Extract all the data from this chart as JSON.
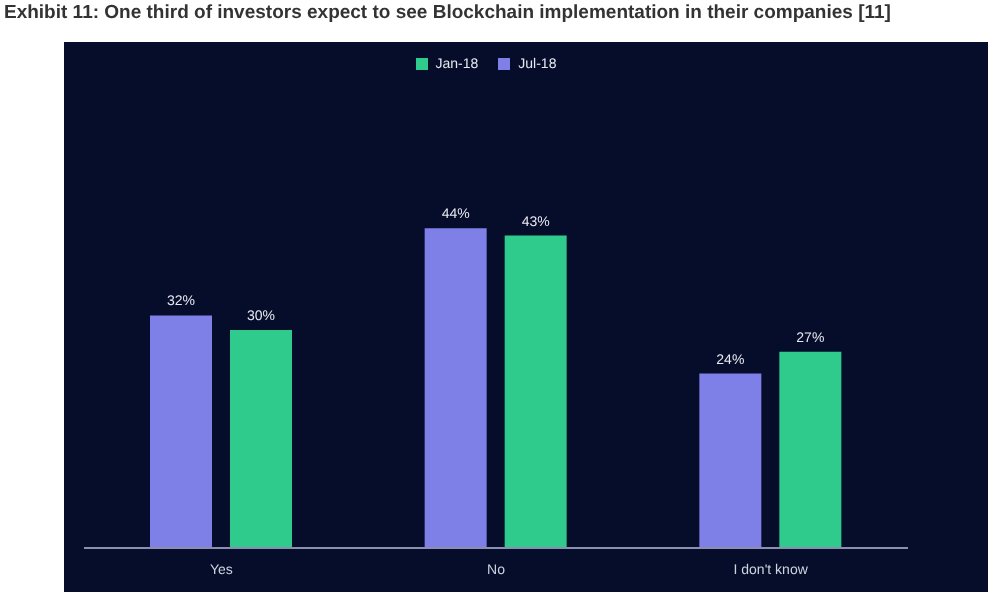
{
  "chart_data": {
    "type": "bar",
    "title": "Exhibit 11: One third of investors expect to see Blockchain implementation in their companies [11]",
    "categories": [
      "Yes",
      "No",
      "I don't know"
    ],
    "series": [
      {
        "name": "Jul-18",
        "color": "#7f7fe8",
        "values": [
          32,
          44,
          24
        ],
        "value_labels": [
          "32%",
          "44%",
          "24%"
        ]
      },
      {
        "name": "Jan-18",
        "color": "#2fcb8c",
        "values": [
          30,
          43,
          27
        ],
        "value_labels": [
          "30%",
          "43%",
          "27%"
        ]
      }
    ],
    "legend": "top",
    "tick_labels": "x"
  }
}
